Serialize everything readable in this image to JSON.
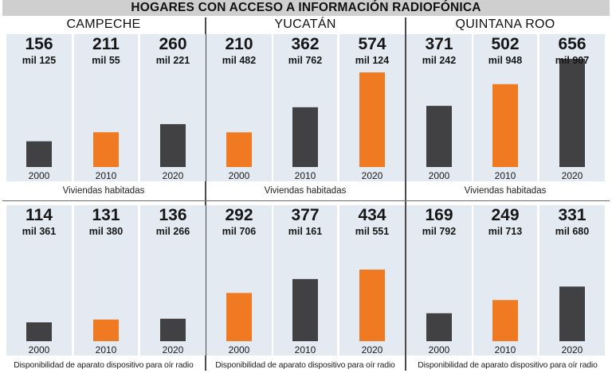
{
  "title": "HOGARES CON ACCESO A INFORMACIÓN RADIOFÓNICA",
  "states": [
    "CAMPECHE",
    "YUCATÁN",
    "QUINTANA ROO"
  ],
  "colors": {
    "dark": "#414143",
    "orange": "#f07a21",
    "panel_bg": "#e3eaf2"
  },
  "chart_data": [
    {
      "type": "bar",
      "state": "CAMPECHE",
      "caption": "Viviendas habitadas",
      "categories": [
        "2000",
        "2010",
        "2020"
      ],
      "values": [
        156125,
        211055,
        260221
      ],
      "labels": [
        [
          "156",
          "mil 125"
        ],
        [
          "211",
          "mil 55"
        ],
        [
          "260",
          "mil 221"
        ]
      ],
      "colors": [
        "dark",
        "orange",
        "dark"
      ]
    },
    {
      "type": "bar",
      "state": "YUCATÁN",
      "caption": "Viviendas habitadas",
      "categories": [
        "2000",
        "2010",
        "2020"
      ],
      "values": [
        210482,
        362762,
        574124
      ],
      "labels": [
        [
          "210",
          "mil 482"
        ],
        [
          "362",
          "mil 762"
        ],
        [
          "574",
          "mil 124"
        ]
      ],
      "colors": [
        "orange",
        "dark",
        "orange"
      ]
    },
    {
      "type": "bar",
      "state": "QUINTANA ROO",
      "caption": "Viviendas habitadas",
      "categories": [
        "2000",
        "2010",
        "2020"
      ],
      "values": [
        371242,
        502948,
        656907
      ],
      "labels": [
        [
          "371",
          "mil 242"
        ],
        [
          "502",
          "mil 948"
        ],
        [
          "656",
          "mil 907"
        ]
      ],
      "colors": [
        "dark",
        "orange",
        "dark"
      ]
    },
    {
      "type": "bar",
      "state": "CAMPECHE",
      "caption": "Disponibilidad de aparato dispositivo para oír radio",
      "categories": [
        "2000",
        "2010",
        "2020"
      ],
      "values": [
        114361,
        131380,
        136266
      ],
      "labels": [
        [
          "114",
          "mil 361"
        ],
        [
          "131",
          "mil 380"
        ],
        [
          "136",
          "mil 266"
        ]
      ],
      "colors": [
        "dark",
        "orange",
        "dark"
      ]
    },
    {
      "type": "bar",
      "state": "YUCATÁN",
      "caption": "Disponibilidad de aparato dispositivo para oír radio",
      "categories": [
        "2000",
        "2010",
        "2020"
      ],
      "values": [
        292706,
        377161,
        434551
      ],
      "labels": [
        [
          "292",
          "mil 706"
        ],
        [
          "377",
          "mil 161"
        ],
        [
          "434",
          "mil 551"
        ]
      ],
      "colors": [
        "orange",
        "dark",
        "orange"
      ]
    },
    {
      "type": "bar",
      "state": "QUINTANA ROO",
      "caption": "Disponibilidad de aparato dispositivo para oír radio",
      "categories": [
        "2000",
        "2010",
        "2020"
      ],
      "values": [
        169792,
        249713,
        331680
      ],
      "labels": [
        [
          "169",
          "mil 792"
        ],
        [
          "249",
          "mil 713"
        ],
        [
          "331",
          "mil 680"
        ]
      ],
      "colors": [
        "dark",
        "orange",
        "dark"
      ]
    }
  ]
}
